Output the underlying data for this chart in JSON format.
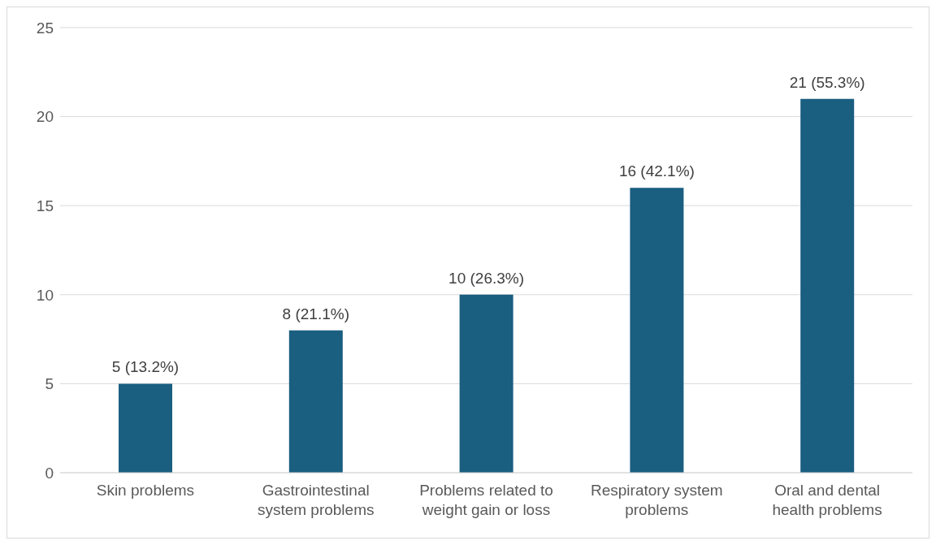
{
  "chart_data": {
    "type": "bar",
    "categories": [
      "Skin problems",
      "Gastrointestinal system problems",
      "Problems related to weight gain or loss",
      "Respiratory system problems",
      "Oral and dental health problems"
    ],
    "values": [
      5,
      8,
      10,
      16,
      21
    ],
    "value_labels": [
      "5 (13.2%)",
      "8 (21.1%)",
      "10 (26.3%)",
      "16 (42.1%)",
      "21 (55.3%)"
    ],
    "color": "#1a5e80",
    "ylim": [
      0,
      25
    ],
    "yticks": [
      0,
      5,
      10,
      15,
      20,
      25
    ],
    "grid": "y"
  }
}
